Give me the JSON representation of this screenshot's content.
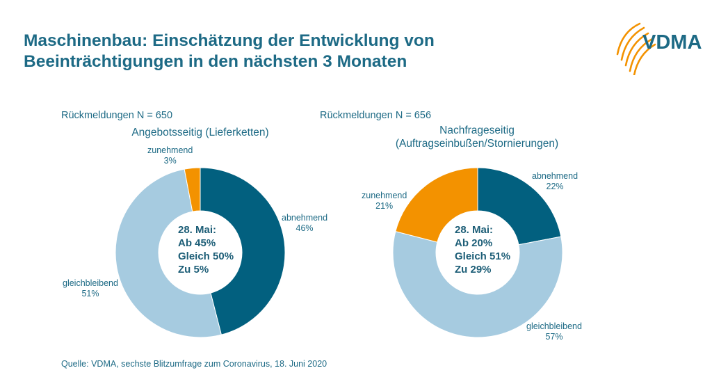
{
  "title_line1": "Maschinenbau: Einschätzung der Entwicklung von",
  "title_line2": "Beeinträchtigungen in den nächsten 3 Monaten",
  "logo_text": "VDMA",
  "source": "Quelle: VDMA, sechste Blitzumfrage zum Coronavirus, 18. Juni 2020",
  "colors": {
    "abnehmend": "#02607f",
    "gleichbleibend": "#a6cbe0",
    "zunehmend": "#f39200",
    "text": "#1d6a85"
  },
  "chart_data": [
    {
      "type": "pie",
      "donut": true,
      "responses": "Rückmeldungen N = 650",
      "title_lines": [
        "Angebotsseitig (Lieferketten)"
      ],
      "slices": [
        {
          "name": "abnehmend",
          "value": 46,
          "label": "46%"
        },
        {
          "name": "gleichbleibend",
          "value": 51,
          "label": "51%"
        },
        {
          "name": "zunehmend",
          "value": 3,
          "label": "3%"
        }
      ],
      "center_lines": [
        "28. Mai:",
        "Ab 45%",
        "Gleich 50%",
        "Zu 5%"
      ]
    },
    {
      "type": "pie",
      "donut": true,
      "responses": "Rückmeldungen N = 656",
      "title_lines": [
        "Nachfrageseitig",
        "(Auftragseinbußen/Stornierungen)"
      ],
      "slices": [
        {
          "name": "abnehmend",
          "value": 22,
          "label": "22%"
        },
        {
          "name": "gleichbleibend",
          "value": 57,
          "label": "57%"
        },
        {
          "name": "zunehmend",
          "value": 21,
          "label": "21%"
        }
      ],
      "center_lines": [
        "28. Mai:",
        "Ab 20%",
        "Gleich 51%",
        "Zu 29%"
      ]
    }
  ]
}
